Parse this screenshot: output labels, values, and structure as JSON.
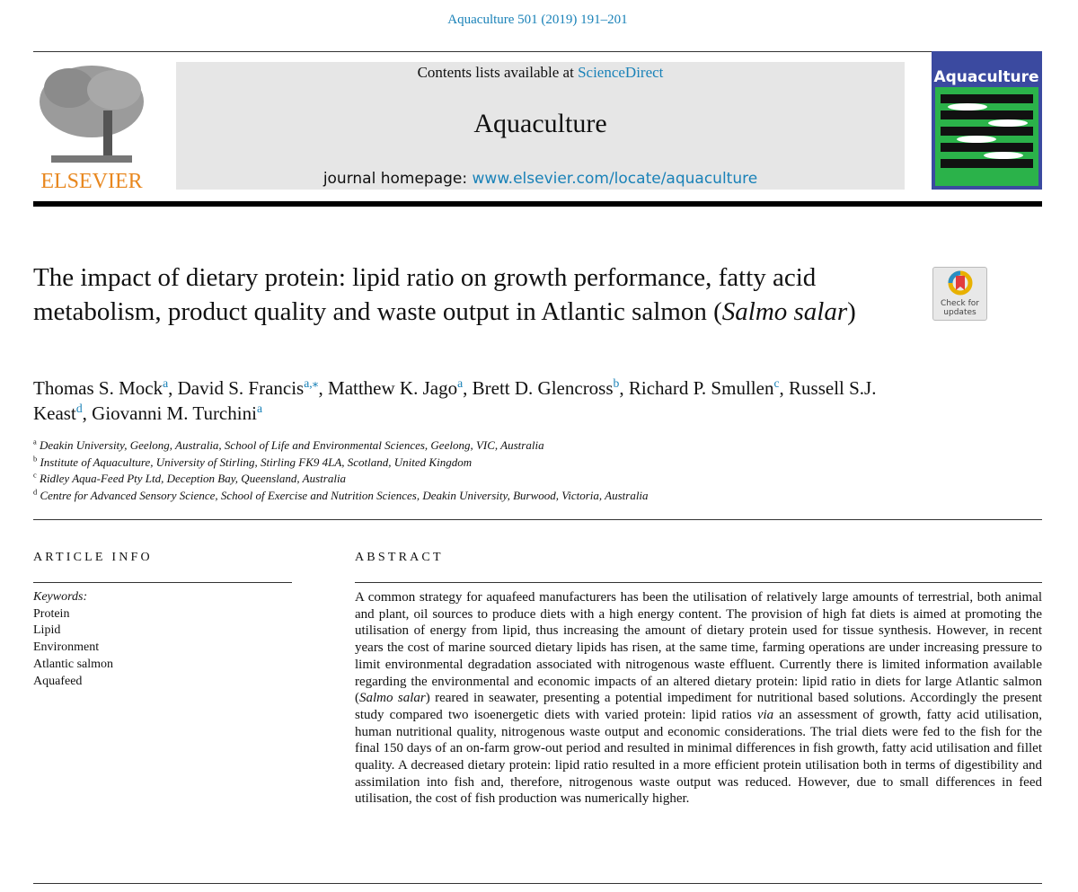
{
  "header": {
    "citation": "Aquaculture 501 (2019) 191–201",
    "contents_prefix": "Contents lists available at",
    "contents_link": "ScienceDirect",
    "journal": "Aquaculture",
    "homepage_prefix": "journal homepage:",
    "homepage_link": "www.elsevier.com/locate/aquaculture",
    "publisher": "ELSEVIER",
    "cover_title": "Aquaculture"
  },
  "check_updates": [
    "Check for",
    "updates"
  ],
  "title": [
    {
      "text": "The impact of dietary protein: lipid ratio on growth performance, fatty acid metabolism, product quality and waste output in Atlantic salmon (",
      "italic": false
    },
    {
      "text": "Salmo salar",
      "italic": true
    },
    {
      "text": ")",
      "italic": false
    }
  ],
  "authors": [
    {
      "name": "Thomas S. Mock",
      "affiliation": "a",
      "separator": ","
    },
    {
      "name": "David S. Francis",
      "affiliation": "a,⁎",
      "separator": ","
    },
    {
      "name": "Matthew K. Jago",
      "affiliation": "a",
      "separator": ","
    },
    {
      "name": "Brett D. Glencross",
      "affiliation": "b",
      "separator": ","
    },
    {
      "name": "Richard P. Smullen",
      "affiliation": "c",
      "separator": ","
    },
    {
      "name": "Russell S.J. Keast",
      "affiliation": "d",
      "separator": ","
    },
    {
      "name": "Giovanni M. Turchini",
      "affiliation": "a"
    }
  ],
  "affiliations": [
    {
      "label": "a",
      "text": "Deakin University, Geelong, Australia, School of Life and Environmental Sciences, Geelong, VIC, Australia"
    },
    {
      "label": "b",
      "text": "Institute of Aquaculture, University of Stirling, Stirling FK9 4LA, Scotland, United Kingdom"
    },
    {
      "label": "c",
      "text": "Ridley Aqua-Feed Pty Ltd, Deception Bay, Queensland, Australia"
    },
    {
      "label": "d",
      "text": "Centre for Advanced Sensory Science, School of Exercise and Nutrition Sciences, Deakin University, Burwood, Victoria, Australia"
    }
  ],
  "article_info": {
    "heading": "ARTICLE INFO",
    "keywords_label": "Keywords:",
    "keywords": [
      "Protein",
      "Lipid",
      "Environment",
      "Atlantic salmon",
      "Aquafeed"
    ]
  },
  "abstract": {
    "heading": "ABSTRACT",
    "segments": [
      {
        "text": "A common strategy for aquafeed manufacturers has been the utilisation of relatively large amounts of terrestrial, both animal and plant, oil sources to produce diets with a high energy content. The provision of high fat diets is aimed at promoting the utilisation of energy from lipid, thus increasing the amount of dietary protein used for tissue synthesis. However, in recent years the cost of marine sourced dietary lipids has risen, at the same time, farming operations are under increasing pressure to limit environmental degradation associated with nitrogenous waste effluent. Currently there is limited information available regarding the environmental and economic impacts of an altered dietary protein: lipid ratio in diets for large Atlantic salmon (",
        "italic": false
      },
      {
        "text": "Salmo salar",
        "italic": true
      },
      {
        "text": ") reared in seawater, presenting a potential impediment for nutritional based solutions. Accordingly the present study compared two isoenergetic diets with varied protein: lipid ratios ",
        "italic": false
      },
      {
        "text": "via",
        "italic": true
      },
      {
        "text": " an assessment of growth, fatty acid utilisation, human nutritional quality, nitrogenous waste output and economic considerations. The trial diets were fed to the fish for the final 150 days of an on-farm grow-out period and resulted in minimal differences in fish growth, fatty acid utilisation and fillet quality. A decreased dietary protein: lipid ratio resulted in a more efficient protein utilisation both in terms of digestibility and assimilation into fish and, therefore, nitrogenous waste output was reduced. However, due to small differences in feed utilisation, the cost of fish production was numerically higher.",
        "italic": false
      }
    ]
  }
}
